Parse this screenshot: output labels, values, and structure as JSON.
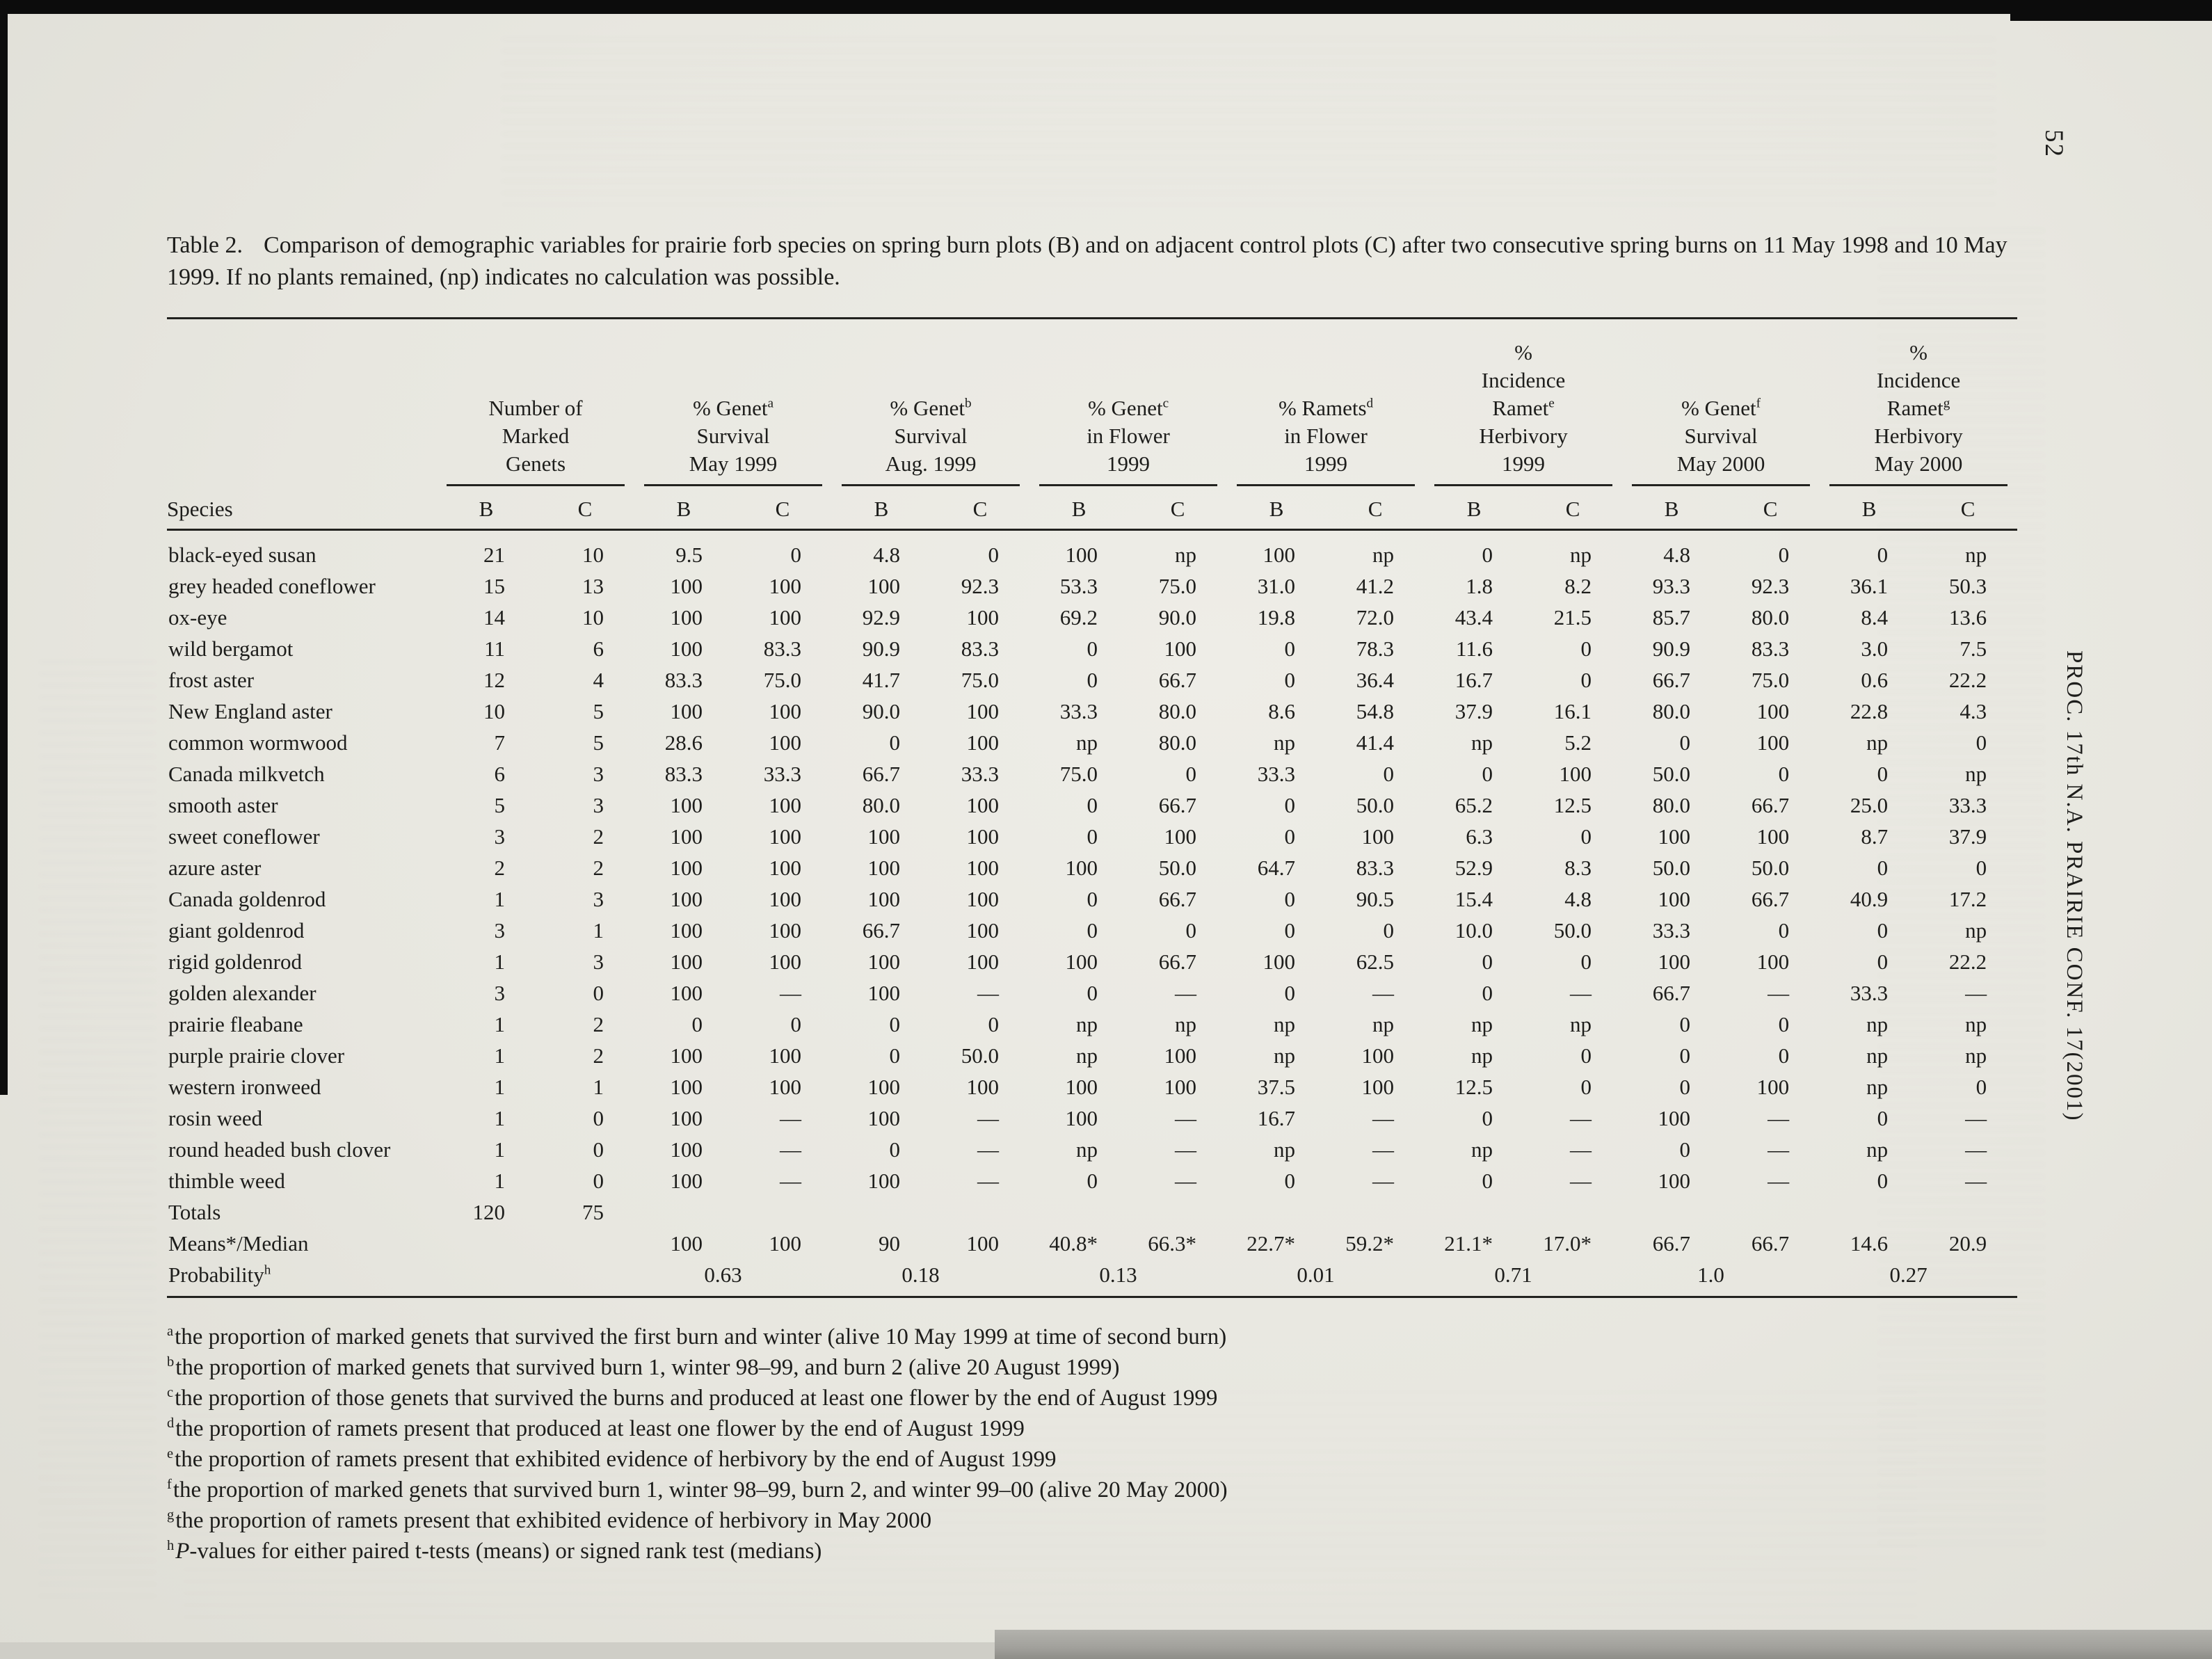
{
  "colors": {
    "ink": "#1d1d1b",
    "paper": "#e9e8e1"
  },
  "page": {
    "page_number": "52",
    "journal_sidebar": "PROC. 17th N.A. PRAIRIE CONF. 17(2001)"
  },
  "table": {
    "caption_label": "Table 2.",
    "caption_text": "Comparison of demographic variables for prairie forb species on spring burn plots (B) and on adjacent control plots (C) after two consecutive spring burns on 11 May 1998 and 10 May 1999. If no plants remained, (np) indicates no calculation was possible.",
    "species_header": "Species",
    "sub_cols": [
      "B",
      "C"
    ],
    "groups": [
      {
        "lines": [
          "Number of",
          "Marked",
          "Genets"
        ],
        "sup": null,
        "sup_line": null
      },
      {
        "lines": [
          "% Genet",
          "Survival",
          "May 1999"
        ],
        "sup": "a",
        "sup_line": 0
      },
      {
        "lines": [
          "% Genet",
          "Survival",
          "Aug. 1999"
        ],
        "sup": "b",
        "sup_line": 0
      },
      {
        "lines": [
          "% Genet",
          "in Flower",
          "1999"
        ],
        "sup": "c",
        "sup_line": 0
      },
      {
        "lines": [
          "% Ramets",
          "in Flower",
          "1999"
        ],
        "sup": "d",
        "sup_line": 0
      },
      {
        "lines": [
          "%",
          "Incidence",
          "Ramet",
          "Herbivory",
          "1999"
        ],
        "sup": "e",
        "sup_line": 2
      },
      {
        "lines": [
          "% Genet",
          "Survival",
          "May 2000"
        ],
        "sup": "f",
        "sup_line": 0
      },
      {
        "lines": [
          "%",
          "Incidence",
          "Ramet",
          "Herbivory",
          "May 2000"
        ],
        "sup": "g",
        "sup_line": 2
      }
    ],
    "rows": [
      {
        "species": "black-eyed susan",
        "values": [
          "21",
          "10",
          "9.5",
          "0",
          "4.8",
          "0",
          "100",
          "np",
          "100",
          "np",
          "0",
          "np",
          "4.8",
          "0",
          "0",
          "np"
        ]
      },
      {
        "species": "grey headed coneflower",
        "values": [
          "15",
          "13",
          "100",
          "100",
          "100",
          "92.3",
          "53.3",
          "75.0",
          "31.0",
          "41.2",
          "1.8",
          "8.2",
          "93.3",
          "92.3",
          "36.1",
          "50.3"
        ]
      },
      {
        "species": "ox-eye",
        "values": [
          "14",
          "10",
          "100",
          "100",
          "92.9",
          "100",
          "69.2",
          "90.0",
          "19.8",
          "72.0",
          "43.4",
          "21.5",
          "85.7",
          "80.0",
          "8.4",
          "13.6"
        ]
      },
      {
        "species": "wild bergamot",
        "values": [
          "11",
          "6",
          "100",
          "83.3",
          "90.9",
          "83.3",
          "0",
          "100",
          "0",
          "78.3",
          "11.6",
          "0",
          "90.9",
          "83.3",
          "3.0",
          "7.5"
        ]
      },
      {
        "species": "frost aster",
        "values": [
          "12",
          "4",
          "83.3",
          "75.0",
          "41.7",
          "75.0",
          "0",
          "66.7",
          "0",
          "36.4",
          "16.7",
          "0",
          "66.7",
          "75.0",
          "0.6",
          "22.2"
        ]
      },
      {
        "species": "New England aster",
        "values": [
          "10",
          "5",
          "100",
          "100",
          "90.0",
          "100",
          "33.3",
          "80.0",
          "8.6",
          "54.8",
          "37.9",
          "16.1",
          "80.0",
          "100",
          "22.8",
          "4.3"
        ]
      },
      {
        "species": "common wormwood",
        "values": [
          "7",
          "5",
          "28.6",
          "100",
          "0",
          "100",
          "np",
          "80.0",
          "np",
          "41.4",
          "np",
          "5.2",
          "0",
          "100",
          "np",
          "0"
        ]
      },
      {
        "species": "Canada milkvetch",
        "values": [
          "6",
          "3",
          "83.3",
          "33.3",
          "66.7",
          "33.3",
          "75.0",
          "0",
          "33.3",
          "0",
          "0",
          "100",
          "50.0",
          "0",
          "0",
          "np"
        ]
      },
      {
        "species": "smooth aster",
        "values": [
          "5",
          "3",
          "100",
          "100",
          "80.0",
          "100",
          "0",
          "66.7",
          "0",
          "50.0",
          "65.2",
          "12.5",
          "80.0",
          "66.7",
          "25.0",
          "33.3"
        ]
      },
      {
        "species": "sweet coneflower",
        "values": [
          "3",
          "2",
          "100",
          "100",
          "100",
          "100",
          "0",
          "100",
          "0",
          "100",
          "6.3",
          "0",
          "100",
          "100",
          "8.7",
          "37.9"
        ]
      },
      {
        "species": "azure aster",
        "values": [
          "2",
          "2",
          "100",
          "100",
          "100",
          "100",
          "100",
          "50.0",
          "64.7",
          "83.3",
          "52.9",
          "8.3",
          "50.0",
          "50.0",
          "0",
          "0"
        ]
      },
      {
        "species": "Canada goldenrod",
        "values": [
          "1",
          "3",
          "100",
          "100",
          "100",
          "100",
          "0",
          "66.7",
          "0",
          "90.5",
          "15.4",
          "4.8",
          "100",
          "66.7",
          "40.9",
          "17.2"
        ]
      },
      {
        "species": "giant goldenrod",
        "values": [
          "3",
          "1",
          "100",
          "100",
          "66.7",
          "100",
          "0",
          "0",
          "0",
          "0",
          "10.0",
          "50.0",
          "33.3",
          "0",
          "0",
          "np"
        ]
      },
      {
        "species": "rigid goldenrod",
        "values": [
          "1",
          "3",
          "100",
          "100",
          "100",
          "100",
          "100",
          "66.7",
          "100",
          "62.5",
          "0",
          "0",
          "100",
          "100",
          "0",
          "22.2"
        ]
      },
      {
        "species": "golden alexander",
        "values": [
          "3",
          "0",
          "100",
          "—",
          "100",
          "—",
          "0",
          "—",
          "0",
          "—",
          "0",
          "—",
          "66.7",
          "—",
          "33.3",
          "—"
        ]
      },
      {
        "species": "prairie fleabane",
        "values": [
          "1",
          "2",
          "0",
          "0",
          "0",
          "0",
          "np",
          "np",
          "np",
          "np",
          "np",
          "np",
          "0",
          "0",
          "np",
          "np"
        ]
      },
      {
        "species": "purple prairie clover",
        "values": [
          "1",
          "2",
          "100",
          "100",
          "0",
          "50.0",
          "np",
          "100",
          "np",
          "100",
          "np",
          "0",
          "0",
          "0",
          "np",
          "np"
        ]
      },
      {
        "species": "western ironweed",
        "values": [
          "1",
          "1",
          "100",
          "100",
          "100",
          "100",
          "100",
          "100",
          "37.5",
          "100",
          "12.5",
          "0",
          "0",
          "100",
          "np",
          "0"
        ]
      },
      {
        "species": "rosin weed",
        "values": [
          "1",
          "0",
          "100",
          "—",
          "100",
          "—",
          "100",
          "—",
          "16.7",
          "—",
          "0",
          "—",
          "100",
          "—",
          "0",
          "—"
        ]
      },
      {
        "species": "round headed bush clover",
        "values": [
          "1",
          "0",
          "100",
          "—",
          "0",
          "—",
          "np",
          "—",
          "np",
          "—",
          "np",
          "—",
          "0",
          "—",
          "np",
          "—"
        ]
      },
      {
        "species": "thimble weed",
        "values": [
          "1",
          "0",
          "100",
          "—",
          "100",
          "—",
          "0",
          "—",
          "0",
          "—",
          "0",
          "—",
          "100",
          "—",
          "0",
          "—"
        ]
      }
    ],
    "totals": {
      "label": "Totals",
      "values": [
        "120",
        "75"
      ]
    },
    "means": {
      "label": "Means*/Median",
      "values": [
        "",
        "",
        "100",
        "100",
        "90",
        "100",
        "40.8*",
        "66.3*",
        "22.7*",
        "59.2*",
        "21.1*",
        "17.0*",
        "66.7",
        "66.7",
        "14.6",
        "20.9"
      ]
    },
    "probability": {
      "label": "Probability",
      "sup": "h",
      "pairs": [
        "",
        "0.63",
        "0.18",
        "0.13",
        "0.01",
        "0.71",
        "1.0",
        "0.27"
      ]
    }
  },
  "footnotes": [
    {
      "sup": "a",
      "text": "the proportion of marked genets that survived the first burn and winter (alive 10 May 1999 at time of second burn)"
    },
    {
      "sup": "b",
      "text": "the proportion of marked genets that survived burn 1, winter 98–99, and burn 2 (alive 20 August 1999)"
    },
    {
      "sup": "c",
      "text": "the proportion of those genets that survived the burns and produced at least one flower by the end of August 1999"
    },
    {
      "sup": "d",
      "text": "the proportion of ramets present that produced at least one flower by the end of August 1999"
    },
    {
      "sup": "e",
      "text": "the proportion of ramets present that exhibited evidence of herbivory by the end of August 1999"
    },
    {
      "sup": "f",
      "text": "the proportion of marked genets that survived burn 1, winter 98–99, burn 2, and winter 99–00 (alive 20 May 2000)"
    },
    {
      "sup": "g",
      "text": "the proportion of ramets present that exhibited evidence of herbivory in May 2000"
    },
    {
      "sup": "h",
      "italic_lead": "P",
      "text": "-values for either paired t-tests (means) or signed rank test (medians)"
    }
  ]
}
